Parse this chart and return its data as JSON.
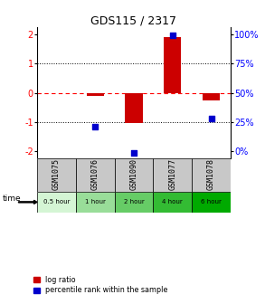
{
  "title": "GDS115 / 2317",
  "samples": [
    "GSM1075",
    "GSM1076",
    "GSM1090",
    "GSM1077",
    "GSM1078"
  ],
  "time_labels": [
    "0.5 hour",
    "1 hour",
    "2 hour",
    "4 hour",
    "6 hour"
  ],
  "log_ratios": [
    0.0,
    -0.12,
    -1.05,
    1.93,
    -0.28
  ],
  "pr_y_vals": [
    null,
    -1.18,
    -2.08,
    1.98,
    -0.88
  ],
  "bar_color": "#cc0000",
  "dot_color": "#0000cc",
  "ylim": [
    -2.25,
    2.25
  ],
  "yticks_left": [
    -2,
    -1,
    0,
    1,
    2
  ],
  "yticks_right_labels": [
    "0%",
    "25%",
    "50%",
    "75%",
    "100%"
  ],
  "yticks_right_pos": [
    -2.0,
    -1.0,
    0.0,
    1.0,
    2.0
  ],
  "dotted_lines": [
    -1,
    1
  ],
  "bg_color": "#ffffff",
  "gsm_bg": "#c8c8c8",
  "green_shades": [
    "#d4f5d4",
    "#99dd99",
    "#66cc66",
    "#33bb33",
    "#00aa00"
  ],
  "bar_width": 0.45
}
